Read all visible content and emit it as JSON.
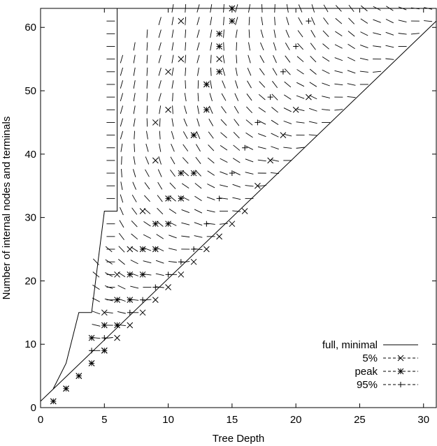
{
  "chart_data": {
    "type": "line",
    "title": "",
    "xlabel": "Tree Depth",
    "ylabel": "Number of internal nodes and terminals",
    "xlim": [
      0,
      31
    ],
    "ylim": [
      0,
      63
    ],
    "x_ticks": [
      0,
      5,
      10,
      15,
      20,
      25,
      30
    ],
    "y_ticks": [
      0,
      10,
      20,
      30,
      40,
      50,
      60
    ],
    "grid": false,
    "legend_position": "bottom-right",
    "series": [
      {
        "name": "full, minimal",
        "style": "solid",
        "marker": "none",
        "segments": [
          {
            "x": [
              0,
              31
            ],
            "y": [
              1,
              61
            ]
          },
          {
            "x": [
              1,
              2,
              3,
              4,
              5,
              6,
              6,
              8,
              31
            ],
            "y": [
              3,
              7,
              15,
              15,
              31,
              31,
              63,
              63,
              63
            ]
          }
        ]
      },
      {
        "name": "5%",
        "style": "dashed",
        "marker": "x",
        "points": {
          "x": [
            1,
            2,
            3,
            4,
            5,
            5,
            6,
            6,
            7,
            7,
            8,
            8,
            9,
            9,
            9,
            10,
            10,
            10,
            11,
            11,
            11,
            12,
            12,
            13,
            13,
            14,
            14,
            15,
            15,
            16,
            17,
            18,
            19,
            20,
            21
          ],
          "y": [
            1,
            3,
            5,
            7,
            9,
            15,
            11,
            21,
            13,
            25,
            15,
            31,
            17,
            39,
            45,
            19,
            47,
            53,
            21,
            55,
            61,
            23,
            43,
            25,
            51,
            27,
            55,
            29,
            63,
            31,
            35,
            39,
            43,
            47,
            49
          ]
        }
      },
      {
        "name": "peak",
        "style": "dashed",
        "marker": "asterisk",
        "points": {
          "x": [
            1,
            2,
            3,
            4,
            4,
            5,
            5,
            6,
            6,
            7,
            7,
            8,
            8,
            9,
            9,
            10,
            10,
            11,
            11,
            12,
            12,
            13,
            13,
            14,
            14,
            14,
            15,
            15
          ],
          "y": [
            1,
            3,
            5,
            7,
            11,
            9,
            13,
            13,
            17,
            17,
            21,
            21,
            25,
            25,
            29,
            29,
            33,
            33,
            37,
            37,
            43,
            47,
            51,
            53,
            57,
            59,
            61,
            63
          ]
        }
      },
      {
        "name": "95%",
        "style": "dashed",
        "marker": "plus",
        "points": {
          "x": [
            4,
            5,
            6,
            7,
            8,
            9,
            10,
            11,
            12,
            13,
            14,
            15,
            16,
            17,
            18,
            19,
            20,
            21
          ],
          "y": [
            9,
            11,
            13,
            15,
            17,
            19,
            21,
            23,
            25,
            29,
            33,
            37,
            41,
            45,
            49,
            53,
            57,
            61
          ]
        }
      }
    ]
  }
}
